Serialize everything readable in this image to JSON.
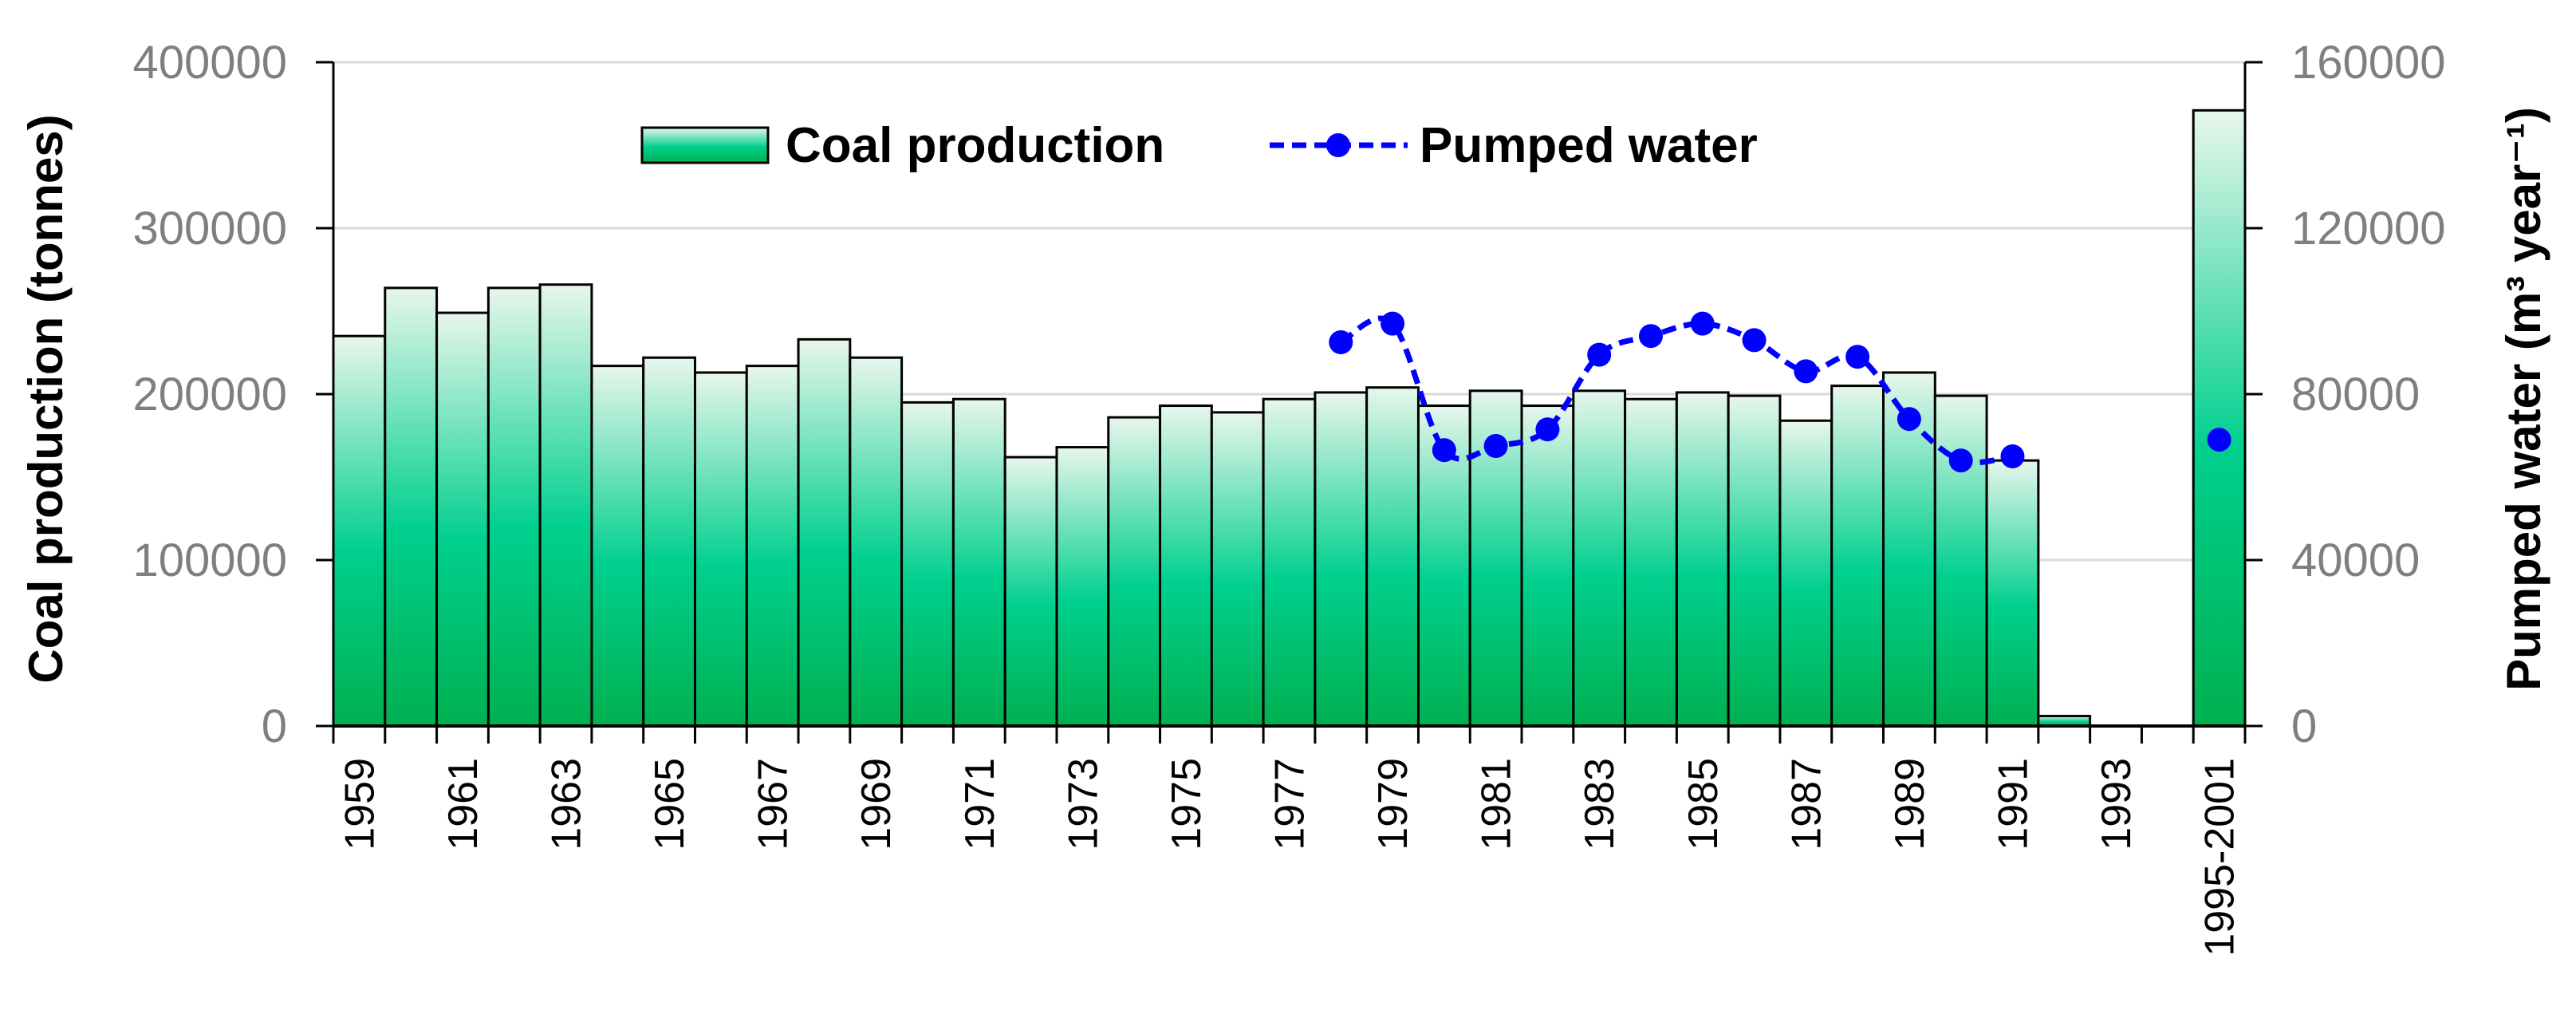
{
  "chart_data": {
    "type": "bar",
    "categories": [
      "1959",
      "1960",
      "1961",
      "1962",
      "1963",
      "1964",
      "1965",
      "1966",
      "1967",
      "1968",
      "1969",
      "1970",
      "1971",
      "1972",
      "1973",
      "1974",
      "1975",
      "1976",
      "1977",
      "1978",
      "1979",
      "1980",
      "1981",
      "1982",
      "1983",
      "1984",
      "1985",
      "1986",
      "1987",
      "1988",
      "1989",
      "1990",
      "1991",
      "1992",
      "1993",
      "1994",
      "1995-2001"
    ],
    "x_tick_labels": [
      "1959",
      "1961",
      "1963",
      "1965",
      "1967",
      "1969",
      "1971",
      "1973",
      "1975",
      "1977",
      "1979",
      "1981",
      "1983",
      "1985",
      "1987",
      "1989",
      "1991",
      "1993",
      "1995-2001"
    ],
    "series": [
      {
        "name": "Coal production",
        "axis": "left",
        "kind": "bar",
        "values": [
          235000,
          264000,
          249000,
          264000,
          266000,
          217000,
          222000,
          213000,
          217000,
          233000,
          222000,
          195000,
          197000,
          162000,
          168000,
          186000,
          193000,
          189000,
          197000,
          201000,
          204000,
          193000,
          202000,
          193000,
          202000,
          197000,
          201000,
          199000,
          184000,
          205000,
          213000,
          199000,
          160000,
          6000,
          0,
          0,
          371000
        ]
      },
      {
        "name": "Pumped water",
        "axis": "right",
        "kind": "line",
        "x": [
          "1978",
          "1979",
          "1980",
          "1981",
          "1982",
          "1983",
          "1984",
          "1985",
          "1986",
          "1987",
          "1988",
          "1989",
          "1990",
          "1991",
          "1995-2001"
        ],
        "values": [
          92500,
          97000,
          66500,
          67500,
          71500,
          89500,
          94000,
          97000,
          93000,
          85500,
          89000,
          74000,
          64000,
          65000,
          69000
        ]
      }
    ],
    "ylabel": "Coal production (tonnes)",
    "ylabel_right": "Pumped water (m³ year⁻¹)",
    "ylim": [
      0,
      400000
    ],
    "ylim_right": [
      0,
      160000
    ],
    "yticks": [
      "0",
      "100000",
      "200000",
      "300000",
      "400000"
    ],
    "yticks_right": [
      "0",
      "40000",
      "80000",
      "120000",
      "160000"
    ],
    "legend": [
      "Coal production",
      "Pumped water"
    ],
    "legend_position": "top",
    "grid": true,
    "colors": {
      "bar_top": "#e8f6ec",
      "bar_mid": "#00d08e",
      "bar_bottom": "#00b050",
      "line": "#0000ff",
      "grid": "#d9d9d9"
    }
  }
}
